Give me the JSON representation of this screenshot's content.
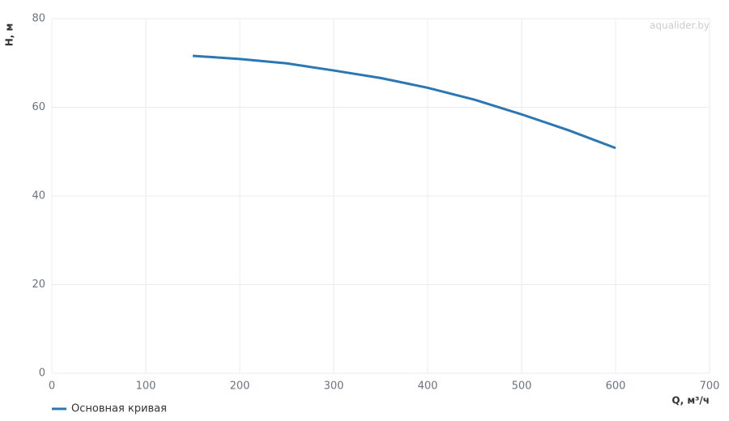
{
  "chart_data": {
    "type": "line",
    "x": [
      150,
      200,
      250,
      300,
      350,
      400,
      450,
      500,
      550,
      600
    ],
    "series": [
      {
        "name": "Основная кривая",
        "color": "#2a77b4",
        "values": [
          71.6,
          70.9,
          69.9,
          68.3,
          66.6,
          64.4,
          61.7,
          58.4,
          54.8,
          50.8
        ]
      }
    ],
    "xlim": [
      0,
      700
    ],
    "xticks": [
      0,
      100,
      200,
      300,
      400,
      500,
      600,
      700
    ],
    "ylim": [
      0,
      80
    ],
    "yticks": [
      0,
      20,
      40,
      60,
      80
    ],
    "xlabel": "Q, м³/ч",
    "ylabel": "H, м",
    "watermark": "aqualider.by",
    "grid": true,
    "legend": "bottom-left"
  }
}
